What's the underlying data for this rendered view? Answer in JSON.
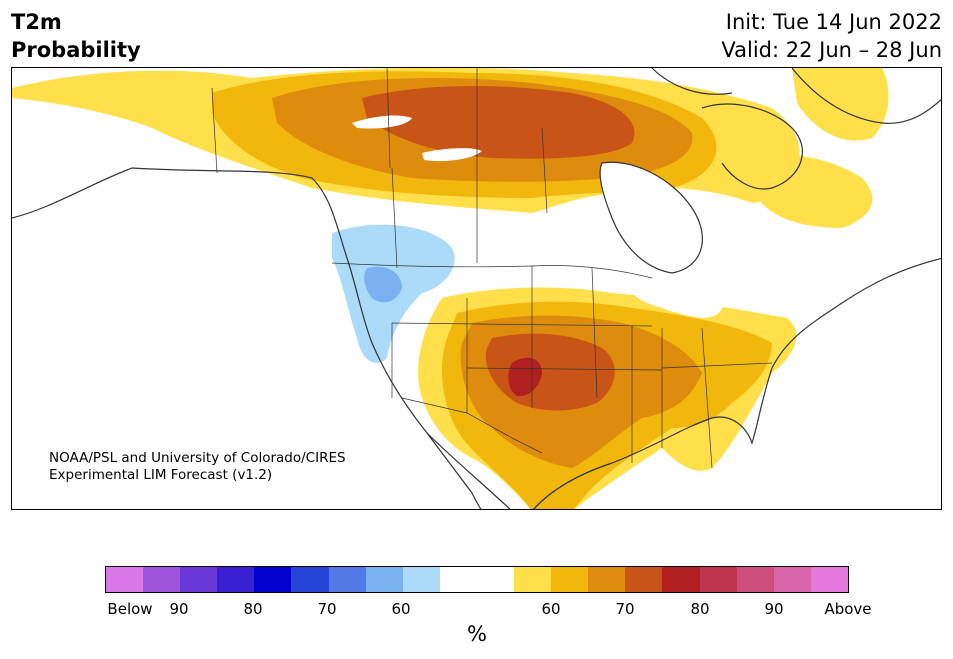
{
  "title": {
    "line1": "T2m",
    "line2": "Probability"
  },
  "dates": {
    "init": "Init: Tue 14 Jun 2022",
    "valid": "Valid: 22 Jun – 28 Jun"
  },
  "credit": {
    "line1": "NOAA/PSL and University of Colorado/CIRES",
    "line2": "Experimental LIM Forecast (v1.2)"
  },
  "colorbar": {
    "unit": "%",
    "colors": [
      "#d977e8",
      "#9f54e0",
      "#6b38d8",
      "#3820d0",
      "#0000cc",
      "#2544d8",
      "#5278e6",
      "#7ab1f0",
      "#abdbf8",
      "#ffffff",
      "#ffffff",
      "#ffe04a",
      "#f2b70c",
      "#de8c0e",
      "#c85418",
      "#b02020",
      "#c03450",
      "#cc4e7a",
      "#d965aa",
      "#e677db"
    ],
    "ticks": [
      "Below",
      "90",
      "80",
      "70",
      "60",
      "60",
      "70",
      "80",
      "90",
      "Above"
    ]
  },
  "map_colors": {
    "warm_60": "#ffe04a",
    "warm_65": "#f2b70c",
    "warm_70": "#de8c0e",
    "warm_75": "#c85418",
    "warm_80": "#b02020",
    "cool_60": "#abdbf8",
    "cool_70": "#7ab1f0",
    "cool_75": "#5278e6",
    "coastline": "#333333"
  }
}
